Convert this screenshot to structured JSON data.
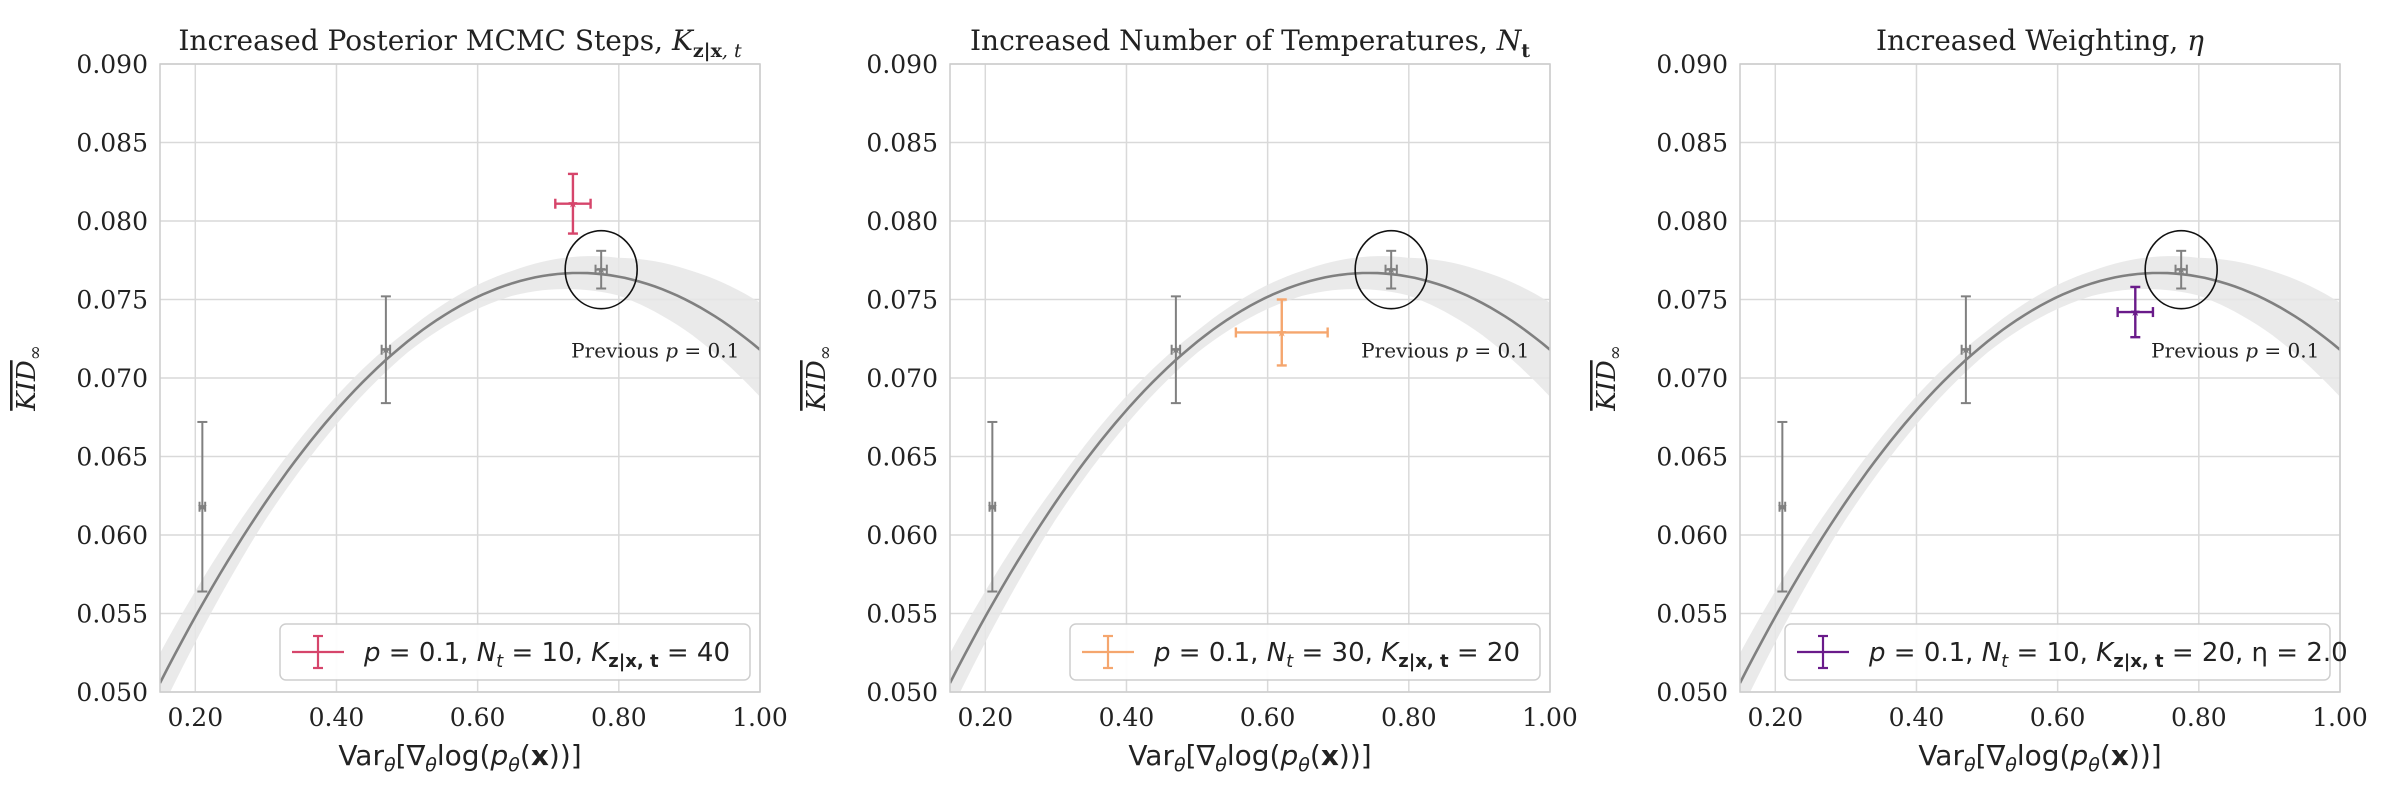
{
  "chart_data": [
    {
      "type": "scatter",
      "title": "Increased Posterior MCMC Steps, K_{z|x,t}",
      "title_parts": [
        "Increased Posterior MCMC Steps, ",
        "K",
        "z|x",
        ", t"
      ],
      "xlabel": "Var_θ[∇_θ log(p_θ(x))]",
      "ylabel": "KID_∞",
      "xlim": [
        0.15,
        1.0
      ],
      "ylim": [
        0.05,
        0.09
      ],
      "xticks": [
        "0.20",
        "0.40",
        "0.60",
        "0.80",
        "1.00"
      ],
      "yticks": [
        "0.050",
        "0.055",
        "0.060",
        "0.065",
        "0.070",
        "0.075",
        "0.080",
        "0.085",
        "0.090"
      ],
      "grid": true,
      "legend_position": "lower-right",
      "annotation": "Previous p = 0.1",
      "baseline_points": [
        {
          "x": 0.21,
          "y": 0.0618,
          "yerr": 0.0054,
          "xerr": 0.004
        },
        {
          "x": 0.47,
          "y": 0.0718,
          "yerr": 0.0034,
          "xerr": 0.006
        },
        {
          "x": 0.775,
          "y": 0.0769,
          "yerr": 0.0012,
          "xerr": 0.008
        }
      ],
      "series": [
        {
          "name": "p = 0.1, N_t = 10, K_{z|x,t} = 40",
          "color": "#d6456b",
          "points": [
            {
              "x": 0.735,
              "y": 0.0811,
              "yerr": 0.0019,
              "xerr": 0.025
            }
          ]
        }
      ],
      "legend_parts": [
        "p",
        " = 0.1, ",
        "N",
        "t",
        " = 10, ",
        "K",
        "z|x, t",
        " = 40"
      ]
    },
    {
      "type": "scatter",
      "title": "Increased Number of Temperatures, N_t",
      "title_parts": [
        "Increased Number of Temperatures, ",
        "N",
        "t"
      ],
      "xlabel": "Var_θ[∇_θ log(p_θ(x))]",
      "ylabel": "KID_∞",
      "xlim": [
        0.15,
        1.0
      ],
      "ylim": [
        0.05,
        0.09
      ],
      "xticks": [
        "0.20",
        "0.40",
        "0.60",
        "0.80",
        "1.00"
      ],
      "yticks": [
        "0.050",
        "0.055",
        "0.060",
        "0.065",
        "0.070",
        "0.075",
        "0.080",
        "0.085",
        "0.090"
      ],
      "grid": true,
      "legend_position": "lower-right",
      "annotation": "Previous p = 0.1",
      "baseline_points": [
        {
          "x": 0.21,
          "y": 0.0618,
          "yerr": 0.0054,
          "xerr": 0.004
        },
        {
          "x": 0.47,
          "y": 0.0718,
          "yerr": 0.0034,
          "xerr": 0.006
        },
        {
          "x": 0.775,
          "y": 0.0769,
          "yerr": 0.0012,
          "xerr": 0.008
        }
      ],
      "series": [
        {
          "name": "p = 0.1, N_t = 30, K_{z|x,t} = 20",
          "color": "#f5a66e",
          "points": [
            {
              "x": 0.62,
              "y": 0.0729,
              "yerr": 0.0021,
              "xerr": 0.065
            }
          ]
        }
      ],
      "legend_parts": [
        "p",
        " = 0.1, ",
        "N",
        "t",
        " = 30, ",
        "K",
        "z|x, t",
        " = 20"
      ]
    },
    {
      "type": "scatter",
      "title": "Increased Weighting, η",
      "title_parts": [
        "Increased Weighting, ",
        "η",
        ""
      ],
      "xlabel": "Var_θ[∇_θ log(p_θ(x))]",
      "ylabel": "KID_∞",
      "xlim": [
        0.15,
        1.0
      ],
      "ylim": [
        0.05,
        0.09
      ],
      "xticks": [
        "0.20",
        "0.40",
        "0.60",
        "0.80",
        "1.00"
      ],
      "yticks": [
        "0.050",
        "0.055",
        "0.060",
        "0.065",
        "0.070",
        "0.075",
        "0.080",
        "0.085",
        "0.090"
      ],
      "grid": true,
      "legend_position": "lower-right",
      "annotation": "Previous p = 0.1",
      "baseline_points": [
        {
          "x": 0.21,
          "y": 0.0618,
          "yerr": 0.0054,
          "xerr": 0.004
        },
        {
          "x": 0.47,
          "y": 0.0718,
          "yerr": 0.0034,
          "xerr": 0.006
        },
        {
          "x": 0.775,
          "y": 0.0769,
          "yerr": 0.0012,
          "xerr": 0.008
        }
      ],
      "series": [
        {
          "name": "p = 0.1, N_t = 10, K_{z|x,t} = 20, η = 2.0",
          "color": "#6a1b8a",
          "points": [
            {
              "x": 0.71,
              "y": 0.0742,
              "yerr": 0.0016,
              "xerr": 0.025
            }
          ]
        }
      ],
      "legend_parts": [
        "p",
        " = 0.1, ",
        "N",
        "t",
        " = 10, ",
        "K",
        "z|x, t",
        " = 20, η = 2.0"
      ]
    }
  ],
  "fit_curve": {
    "color": "#808080",
    "band_color": "#e6e6e6",
    "coefficients": [
      -0.0742,
      0.1103,
      0.0357
    ],
    "band": [
      {
        "x": 0.15,
        "half_width": 0.0019
      },
      {
        "x": 0.3,
        "half_width": 0.0011
      },
      {
        "x": 0.5,
        "half_width": 0.0007
      },
      {
        "x": 0.65,
        "half_width": 0.0008
      },
      {
        "x": 0.8,
        "half_width": 0.0012
      },
      {
        "x": 0.9,
        "half_width": 0.002
      },
      {
        "x": 1.0,
        "half_width": 0.003
      }
    ]
  },
  "baseline_color": "#808080"
}
